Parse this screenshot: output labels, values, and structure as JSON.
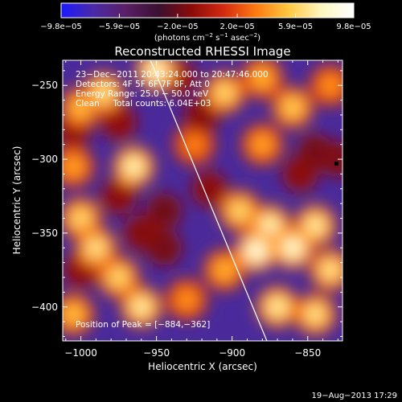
{
  "chart_data": {
    "type": "heatmap",
    "title": "Reconstructed RHESSI Image",
    "xlabel": "Heliocentric X (arcsec)",
    "ylabel": "Heliocentric Y (arcsec)",
    "xlim": [
      -1012,
      -827
    ],
    "ylim": [
      -423,
      -233
    ],
    "x_ticks": [
      -1000,
      -950,
      -900,
      -850
    ],
    "x_tick_labels": [
      "−1000",
      "−950",
      "−900",
      "−850"
    ],
    "y_ticks": [
      -250,
      -300,
      -350,
      -400
    ],
    "y_tick_labels": [
      "−250",
      "−300",
      "−350",
      "−400"
    ],
    "colorbar": {
      "min": -9.8e-05,
      "max": 9.8e-05,
      "tick_values": [
        -9.8e-05,
        -5.9e-05,
        -2e-05,
        2e-05,
        5.9e-05,
        9.8e-05
      ],
      "tick_labels": [
        "−9.8e−05",
        "−5.9e−05",
        "−2.0e−05",
        "2.0e−05",
        "5.9e−05",
        "9.8e−05"
      ],
      "label_main": "(photons cm",
      "label_exp1": "−2",
      "label_mid": " s",
      "label_exp2": "−1",
      "label_mid2": " asec",
      "label_exp3": "−2",
      "label_end": ")",
      "stops": [
        "#1a1aff",
        "#4b2aa8",
        "#5a1f66",
        "#3a1030",
        "#8a0a0a",
        "#d42a10",
        "#ff7a10",
        "#ffc840",
        "#fff7c0",
        "#ffffff"
      ]
    },
    "info": {
      "line1": "23−Dec−2011 20:43:24.000 to 20:47:46.000",
      "line2": "Detectors: 4F 5F 6F 7F 8F, Att 0",
      "line3": "Energy Range: 25.0 − 50.0 keV",
      "line4": "Clean     Total counts: 6.04E+03"
    },
    "peak_label": "Position of Peak = [−884,−362]",
    "peak": [
      -884,
      -362
    ],
    "limb_line": [
      [
        -954,
        -233
      ],
      [
        -877,
        -423
      ]
    ],
    "marker": [
      -831,
      -303
    ],
    "blobs": [
      {
        "x": -950,
        "y": -240,
        "v": 0.9
      },
      {
        "x": -985,
        "y": -255,
        "v": 0.75
      },
      {
        "x": -1000,
        "y": -265,
        "v": 0.6
      },
      {
        "x": -905,
        "y": -255,
        "v": 0.7
      },
      {
        "x": -880,
        "y": -245,
        "v": 0.55
      },
      {
        "x": -860,
        "y": -265,
        "v": 0.65
      },
      {
        "x": -835,
        "y": -250,
        "v": 0.45
      },
      {
        "x": -965,
        "y": -305,
        "v": 0.85
      },
      {
        "x": -1005,
        "y": -305,
        "v": 0.5
      },
      {
        "x": -925,
        "y": -290,
        "v": 0.4
      },
      {
        "x": -880,
        "y": -290,
        "v": 0.5
      },
      {
        "x": -895,
        "y": -335,
        "v": 0.7
      },
      {
        "x": -875,
        "y": -345,
        "v": 0.85
      },
      {
        "x": -884,
        "y": -362,
        "v": 1.0
      },
      {
        "x": -860,
        "y": -360,
        "v": 0.95
      },
      {
        "x": -845,
        "y": -345,
        "v": 0.8
      },
      {
        "x": -835,
        "y": -375,
        "v": 0.75
      },
      {
        "x": -905,
        "y": -375,
        "v": 0.55
      },
      {
        "x": -870,
        "y": -400,
        "v": 0.8
      },
      {
        "x": -845,
        "y": -405,
        "v": 0.75
      },
      {
        "x": -1000,
        "y": -340,
        "v": 0.7
      },
      {
        "x": -990,
        "y": -360,
        "v": 0.75
      },
      {
        "x": -975,
        "y": -380,
        "v": 0.7
      },
      {
        "x": -960,
        "y": -400,
        "v": 0.8
      },
      {
        "x": -1005,
        "y": -405,
        "v": 0.6
      },
      {
        "x": -930,
        "y": -395,
        "v": 0.45
      },
      {
        "x": -960,
        "y": -350,
        "v": -0.4
      },
      {
        "x": -945,
        "y": -335,
        "v": -0.6
      },
      {
        "x": -945,
        "y": -360,
        "v": -0.55
      },
      {
        "x": -975,
        "y": -325,
        "v": -0.35
      },
      {
        "x": -1005,
        "y": -280,
        "v": -0.35
      },
      {
        "x": -975,
        "y": -275,
        "v": -0.3
      },
      {
        "x": -920,
        "y": -270,
        "v": -0.4
      },
      {
        "x": -845,
        "y": -295,
        "v": -0.55
      },
      {
        "x": -830,
        "y": -300,
        "v": -0.5
      },
      {
        "x": -855,
        "y": -310,
        "v": -0.35
      },
      {
        "x": -1000,
        "y": -375,
        "v": -0.3
      },
      {
        "x": -915,
        "y": -320,
        "v": -0.35
      },
      {
        "x": -935,
        "y": -245,
        "v": -0.25
      }
    ]
  },
  "footer": {
    "timestamp": "19−Aug−2013 17:29"
  }
}
